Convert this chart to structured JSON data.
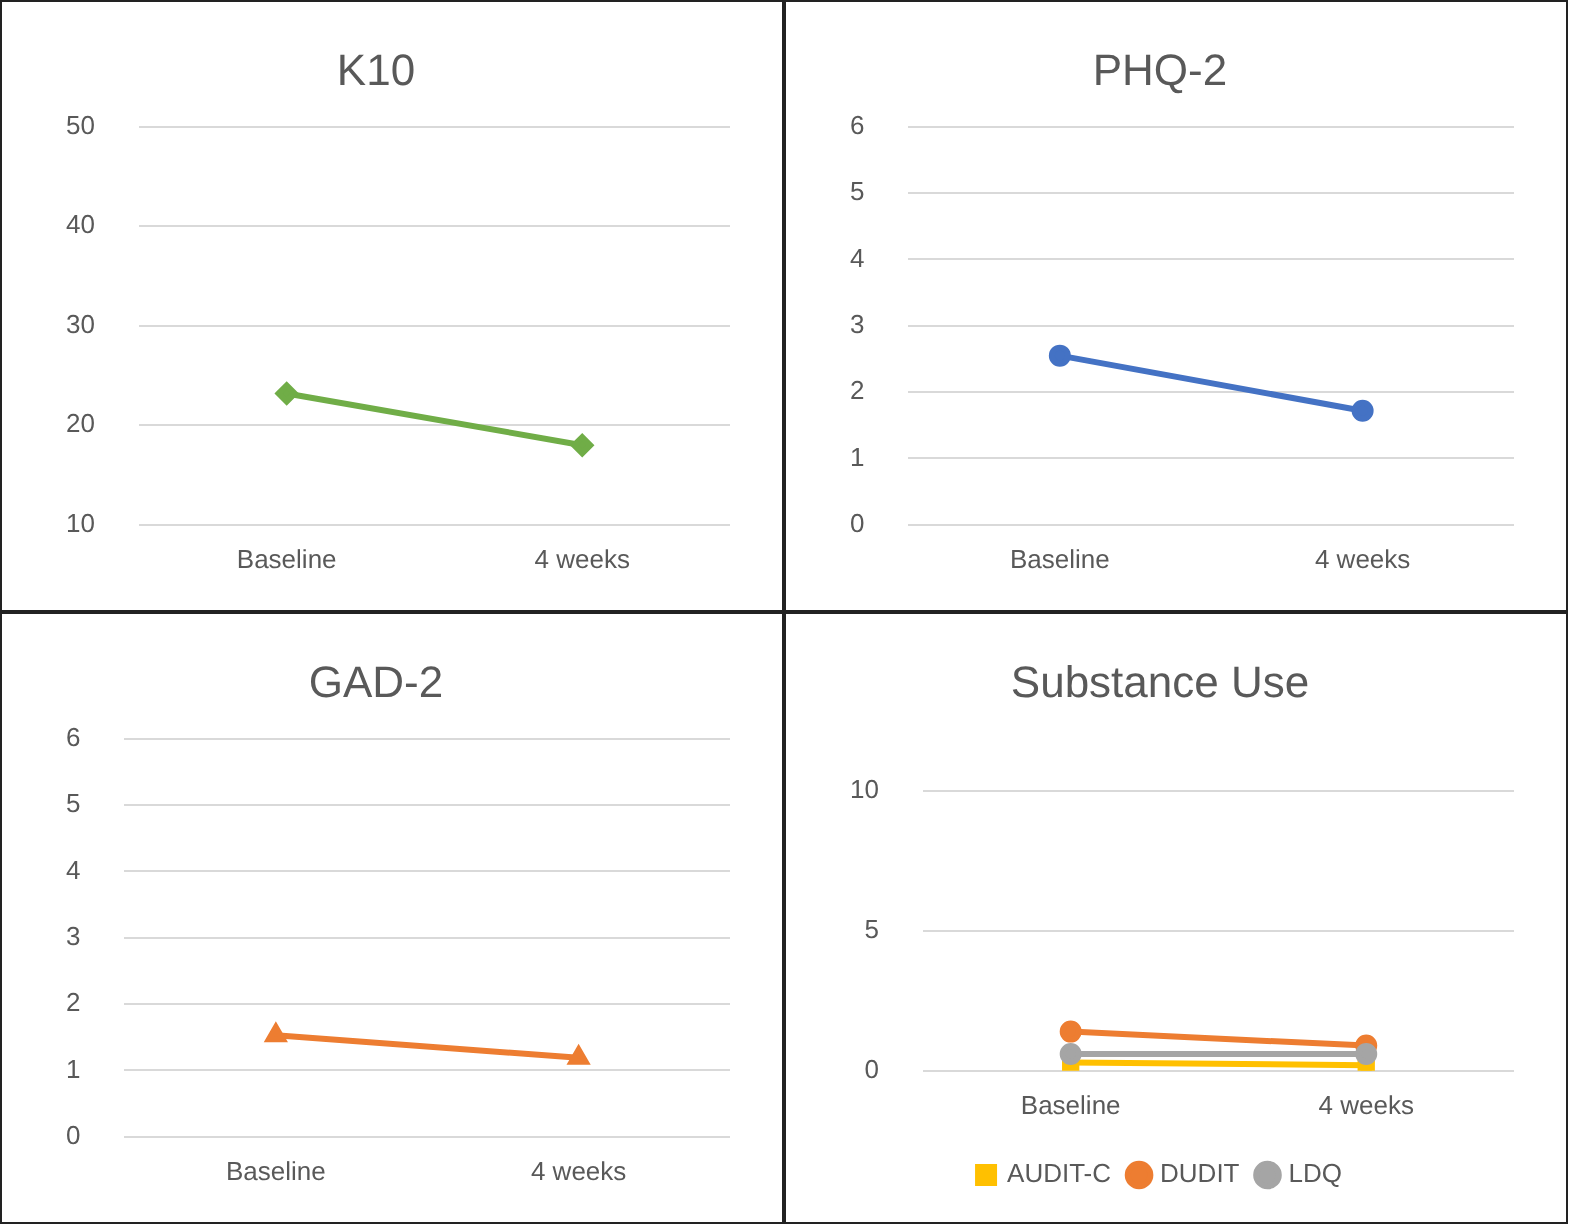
{
  "chart_data": [
    {
      "type": "line",
      "title": "K10",
      "categories": [
        "Baseline",
        "4 weeks"
      ],
      "ylim": [
        10,
        50
      ],
      "yticks": [
        10,
        20,
        30,
        40,
        50
      ],
      "grid": "y",
      "legend": false,
      "series": [
        {
          "color": "#70ad47",
          "marker": "diamond",
          "values": [
            23.2,
            18.0
          ]
        }
      ]
    },
    {
      "type": "line",
      "title": "PHQ-2",
      "categories": [
        "Baseline",
        "4 weeks"
      ],
      "ylim": [
        0,
        6
      ],
      "yticks": [
        0,
        1,
        2,
        3,
        4,
        5,
        6
      ],
      "grid": "y",
      "legend": false,
      "series": [
        {
          "color": "#4472c4",
          "marker": "circle",
          "values": [
            2.55,
            1.72
          ]
        }
      ]
    },
    {
      "type": "line",
      "title": "GAD-2",
      "categories": [
        "Baseline",
        "4 weeks"
      ],
      "ylim": [
        0,
        6
      ],
      "yticks": [
        0,
        1,
        2,
        3,
        4,
        5,
        6
      ],
      "grid": "y",
      "legend": false,
      "series": [
        {
          "color": "#ed7d31",
          "marker": "triangle",
          "values": [
            1.53,
            1.19
          ]
        }
      ]
    },
    {
      "type": "line",
      "title": "Substance Use",
      "categories": [
        "Baseline",
        "4 weeks"
      ],
      "ylim": [
        0,
        10
      ],
      "yticks": [
        0,
        5,
        10
      ],
      "grid": "y",
      "legend": "bottom",
      "series": [
        {
          "name": "AUDIT-C",
          "color": "#ffc000",
          "marker": "square",
          "values": [
            0.3,
            0.2
          ]
        },
        {
          "name": "DUDIT",
          "color": "#ed7d31",
          "marker": "circle",
          "values": [
            1.4,
            0.9
          ]
        },
        {
          "name": "LDQ",
          "color": "#a5a5a5",
          "marker": "circle",
          "values": [
            0.6,
            0.6
          ]
        }
      ]
    }
  ]
}
